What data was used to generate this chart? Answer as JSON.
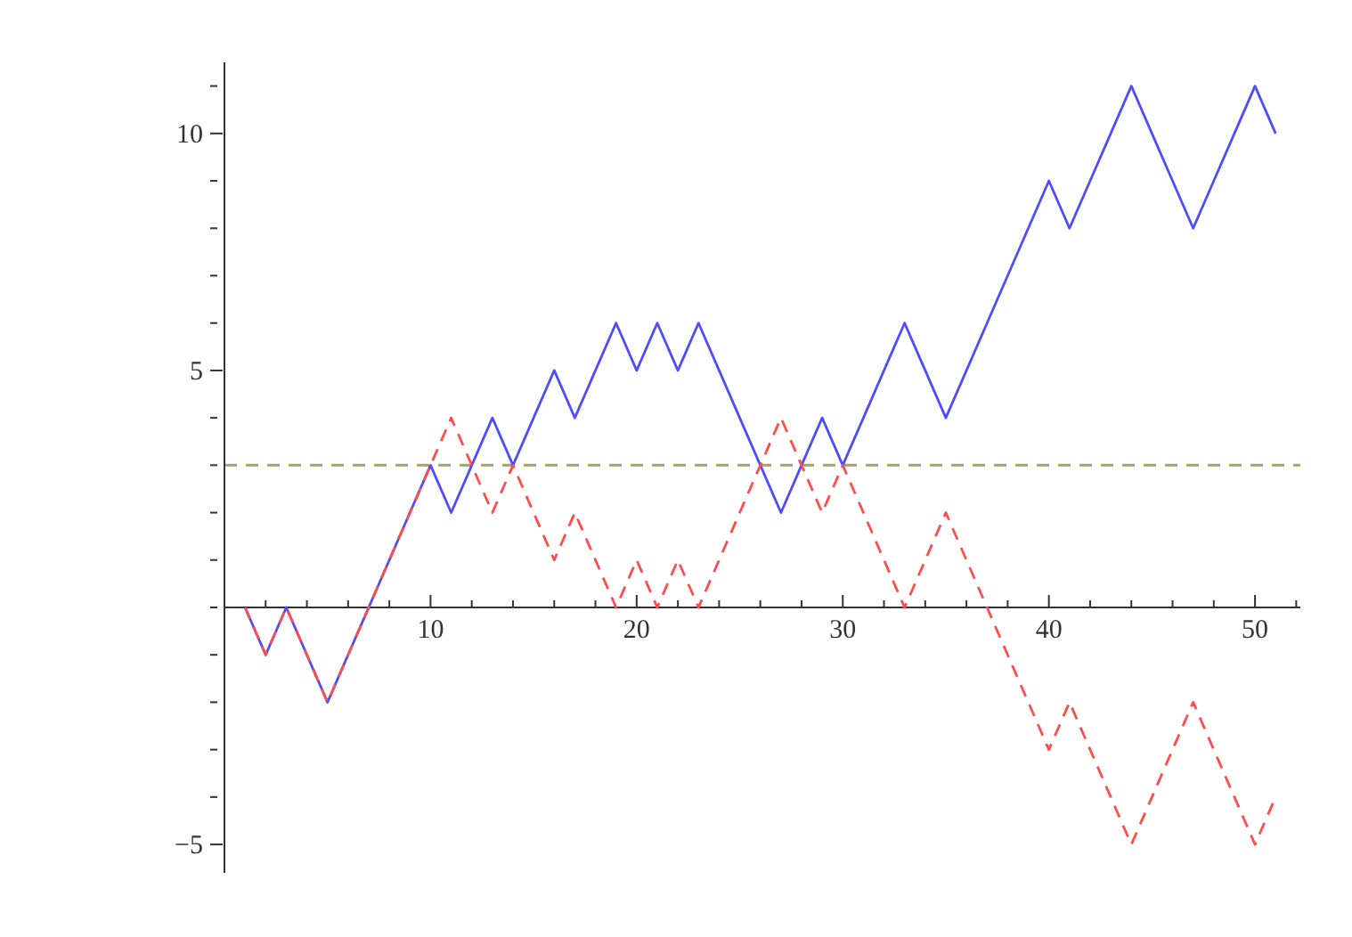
{
  "chart_data": {
    "type": "line",
    "x": [
      1,
      2,
      3,
      4,
      5,
      6,
      7,
      8,
      9,
      10,
      11,
      12,
      13,
      14,
      15,
      16,
      17,
      18,
      19,
      20,
      21,
      22,
      23,
      24,
      25,
      26,
      27,
      28,
      29,
      30,
      31,
      32,
      33,
      34,
      35,
      36,
      37,
      38,
      39,
      40,
      41,
      42,
      43,
      44,
      45,
      46,
      47,
      48,
      49,
      50,
      51
    ],
    "series": [
      {
        "color": "#4d4dff",
        "line_style": "solid",
        "values": [
          0,
          -1,
          0,
          -1,
          -2,
          -1,
          0,
          1,
          2,
          3,
          2,
          3,
          4,
          3,
          4,
          5,
          4,
          5,
          6,
          5,
          6,
          5,
          6,
          5,
          4,
          3,
          2,
          3,
          4,
          3,
          4,
          5,
          6,
          5,
          4,
          5,
          6,
          7,
          8,
          9,
          8,
          9,
          10,
          11,
          10,
          9,
          8,
          9,
          10,
          11,
          10
        ]
      },
      {
        "color": "#ff4d4d",
        "line_style": "dashed",
        "values": [
          0,
          -1,
          0,
          -1,
          -2,
          -1,
          0,
          1,
          2,
          3,
          4,
          3,
          2,
          3,
          2,
          1,
          2,
          1,
          0,
          1,
          0,
          1,
          0,
          1,
          2,
          3,
          4,
          3,
          2,
          3,
          2,
          1,
          0,
          1,
          2,
          1,
          0,
          -1,
          -2,
          -3,
          -2,
          -3,
          -4,
          -5,
          -4,
          -3,
          -2,
          -3,
          -4,
          -5,
          -4
        ]
      }
    ],
    "xlim": [
      0,
      52.2
    ],
    "xticks": [
      {
        "value": 2,
        "label": null
      },
      {
        "value": 4,
        "label": null
      },
      {
        "value": 6,
        "label": null
      },
      {
        "value": 8,
        "label": null
      },
      10,
      {
        "value": 12,
        "label": null
      },
      {
        "value": 14,
        "label": null
      },
      {
        "value": 16,
        "label": null
      },
      {
        "value": 18,
        "label": null
      },
      20,
      {
        "value": 22,
        "label": null
      },
      {
        "value": 24,
        "label": null
      },
      {
        "value": 26,
        "label": null
      },
      {
        "value": 28,
        "label": null
      },
      30,
      {
        "value": 32,
        "label": null
      },
      {
        "value": 34,
        "label": null
      },
      {
        "value": 36,
        "label": null
      },
      {
        "value": 38,
        "label": null
      },
      40,
      {
        "value": 42,
        "label": null
      },
      {
        "value": 44,
        "label": null
      },
      {
        "value": 46,
        "label": null
      },
      {
        "value": 48,
        "label": null
      },
      50,
      {
        "value": 52,
        "label": null
      }
    ],
    "ylim": [
      -5.6,
      11.5
    ],
    "yticks": [
      -5,
      {
        "value": -4,
        "label": null
      },
      {
        "value": -3,
        "label": null
      },
      {
        "value": -2,
        "label": null
      },
      {
        "value": -1,
        "label": null
      },
      {
        "value": 0,
        "label": null
      },
      {
        "value": 1,
        "label": null
      },
      {
        "value": 2,
        "label": null
      },
      {
        "value": 3,
        "label": null
      },
      {
        "value": 4,
        "label": null
      },
      5,
      {
        "value": 6,
        "label": null
      },
      {
        "value": 7,
        "label": null
      },
      {
        "value": 8,
        "label": null
      },
      {
        "value": 9,
        "label": null
      },
      10,
      {
        "value": 11,
        "label": null
      }
    ],
    "ref_lines": [
      {
        "axis": "y",
        "value": 3,
        "color": "#aaa060",
        "line_style": "dashed"
      }
    ],
    "marker": "none",
    "grid": false,
    "legend": false
  }
}
